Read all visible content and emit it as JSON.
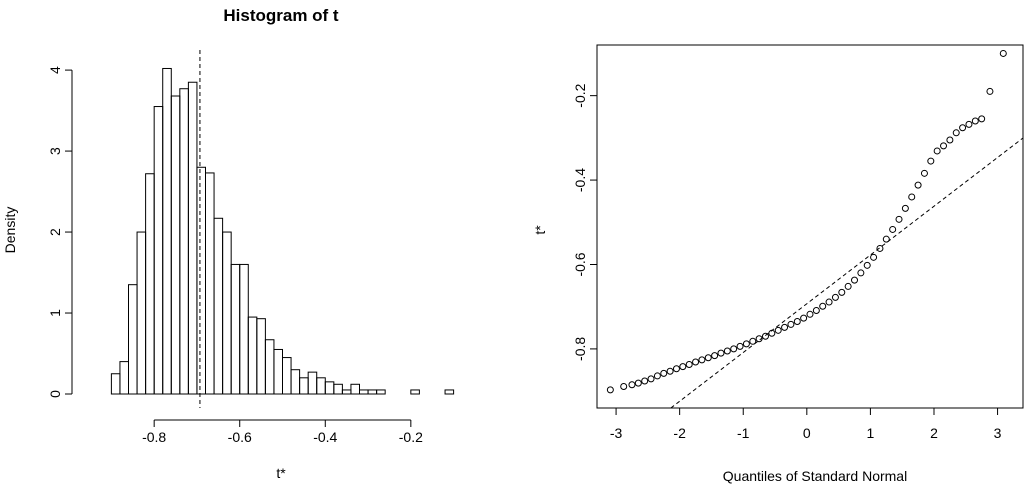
{
  "chart_data": [
    {
      "type": "histogram",
      "title": "Histogram of t",
      "xlabel": "t*",
      "ylabel": "Density",
      "xlim": [
        -0.95,
        -0.05
      ],
      "ylim": [
        0,
        4.1
      ],
      "xticks": [
        -0.8,
        -0.6,
        -0.4,
        -0.2
      ],
      "xtick_labels": [
        "-0.8",
        "-0.6",
        "-0.4",
        "-0.2"
      ],
      "yticks": [
        0,
        1,
        2,
        3,
        4
      ],
      "ytick_labels": [
        "0",
        "1",
        "2",
        "3",
        "4"
      ],
      "bin_width": 0.02,
      "bins_start": [
        -0.9,
        -0.88,
        -0.86,
        -0.84,
        -0.82,
        -0.8,
        -0.78,
        -0.76,
        -0.74,
        -0.72,
        -0.7,
        -0.68,
        -0.66,
        -0.64,
        -0.62,
        -0.6,
        -0.58,
        -0.56,
        -0.54,
        -0.52,
        -0.5,
        -0.48,
        -0.46,
        -0.44,
        -0.42,
        -0.4,
        -0.38,
        -0.36,
        -0.34,
        -0.32,
        -0.3,
        -0.28,
        -0.2,
        -0.12
      ],
      "density": [
        0.25,
        0.4,
        1.35,
        2.0,
        2.72,
        3.55,
        4.02,
        3.68,
        3.77,
        3.85,
        2.8,
        2.73,
        2.17,
        2.0,
        1.6,
        1.6,
        0.95,
        0.93,
        0.67,
        0.55,
        0.45,
        0.3,
        0.2,
        0.27,
        0.2,
        0.15,
        0.12,
        0.05,
        0.12,
        0.05,
        0.05,
        0.05,
        0.05,
        0.05
      ],
      "vline": {
        "x": -0.693,
        "style": "dashed"
      },
      "grid": false
    },
    {
      "type": "scatter",
      "title": "",
      "xlabel": "Quantiles of Standard Normal",
      "ylabel": "t*",
      "xlim": [
        -3.3,
        3.4
      ],
      "ylim": [
        -0.94,
        -0.08
      ],
      "xticks": [
        -3,
        -2,
        -1,
        0,
        1,
        2,
        3
      ],
      "xtick_labels": [
        "-3",
        "-2",
        "-1",
        "0",
        "1",
        "2",
        "3"
      ],
      "yticks": [
        -0.8,
        -0.6,
        -0.4,
        -0.2
      ],
      "ytick_labels": [
        "-0.8",
        "-0.6",
        "-0.4",
        "-0.2"
      ],
      "marker": "open-circle",
      "reference_line": {
        "intercept": -0.693,
        "slope": 0.1155,
        "style": "dashed"
      },
      "points": [
        [
          -3.09,
          -0.897
        ],
        [
          -2.88,
          -0.889
        ],
        [
          -2.75,
          -0.885
        ],
        [
          -2.65,
          -0.881
        ],
        [
          -2.55,
          -0.876
        ],
        [
          -2.45,
          -0.871
        ],
        [
          -2.35,
          -0.864
        ],
        [
          -2.25,
          -0.858
        ],
        [
          -2.15,
          -0.853
        ],
        [
          -2.05,
          -0.847
        ],
        [
          -1.95,
          -0.842
        ],
        [
          -1.85,
          -0.837
        ],
        [
          -1.75,
          -0.831
        ],
        [
          -1.65,
          -0.826
        ],
        [
          -1.55,
          -0.821
        ],
        [
          -1.45,
          -0.816
        ],
        [
          -1.35,
          -0.81
        ],
        [
          -1.25,
          -0.805
        ],
        [
          -1.15,
          -0.8
        ],
        [
          -1.05,
          -0.794
        ],
        [
          -0.95,
          -0.788
        ],
        [
          -0.85,
          -0.782
        ],
        [
          -0.75,
          -0.776
        ],
        [
          -0.65,
          -0.77
        ],
        [
          -0.55,
          -0.763
        ],
        [
          -0.45,
          -0.756
        ],
        [
          -0.35,
          -0.749
        ],
        [
          -0.25,
          -0.742
        ],
        [
          -0.15,
          -0.735
        ],
        [
          -0.05,
          -0.727
        ],
        [
          0.05,
          -0.718
        ],
        [
          0.15,
          -0.709
        ],
        [
          0.25,
          -0.699
        ],
        [
          0.35,
          -0.689
        ],
        [
          0.45,
          -0.678
        ],
        [
          0.55,
          -0.666
        ],
        [
          0.65,
          -0.652
        ],
        [
          0.75,
          -0.637
        ],
        [
          0.85,
          -0.62
        ],
        [
          0.95,
          -0.602
        ],
        [
          1.05,
          -0.583
        ],
        [
          1.15,
          -0.562
        ],
        [
          1.25,
          -0.54
        ],
        [
          1.35,
          -0.517
        ],
        [
          1.45,
          -0.493
        ],
        [
          1.55,
          -0.467
        ],
        [
          1.65,
          -0.44
        ],
        [
          1.75,
          -0.412
        ],
        [
          1.85,
          -0.384
        ],
        [
          1.95,
          -0.355
        ],
        [
          2.05,
          -0.331
        ],
        [
          2.15,
          -0.319
        ],
        [
          2.25,
          -0.305
        ],
        [
          2.35,
          -0.288
        ],
        [
          2.45,
          -0.276
        ],
        [
          2.55,
          -0.268
        ],
        [
          2.65,
          -0.26
        ],
        [
          2.75,
          -0.255
        ],
        [
          2.88,
          -0.19
        ],
        [
          3.09,
          -0.1
        ]
      ],
      "grid": false
    }
  ]
}
